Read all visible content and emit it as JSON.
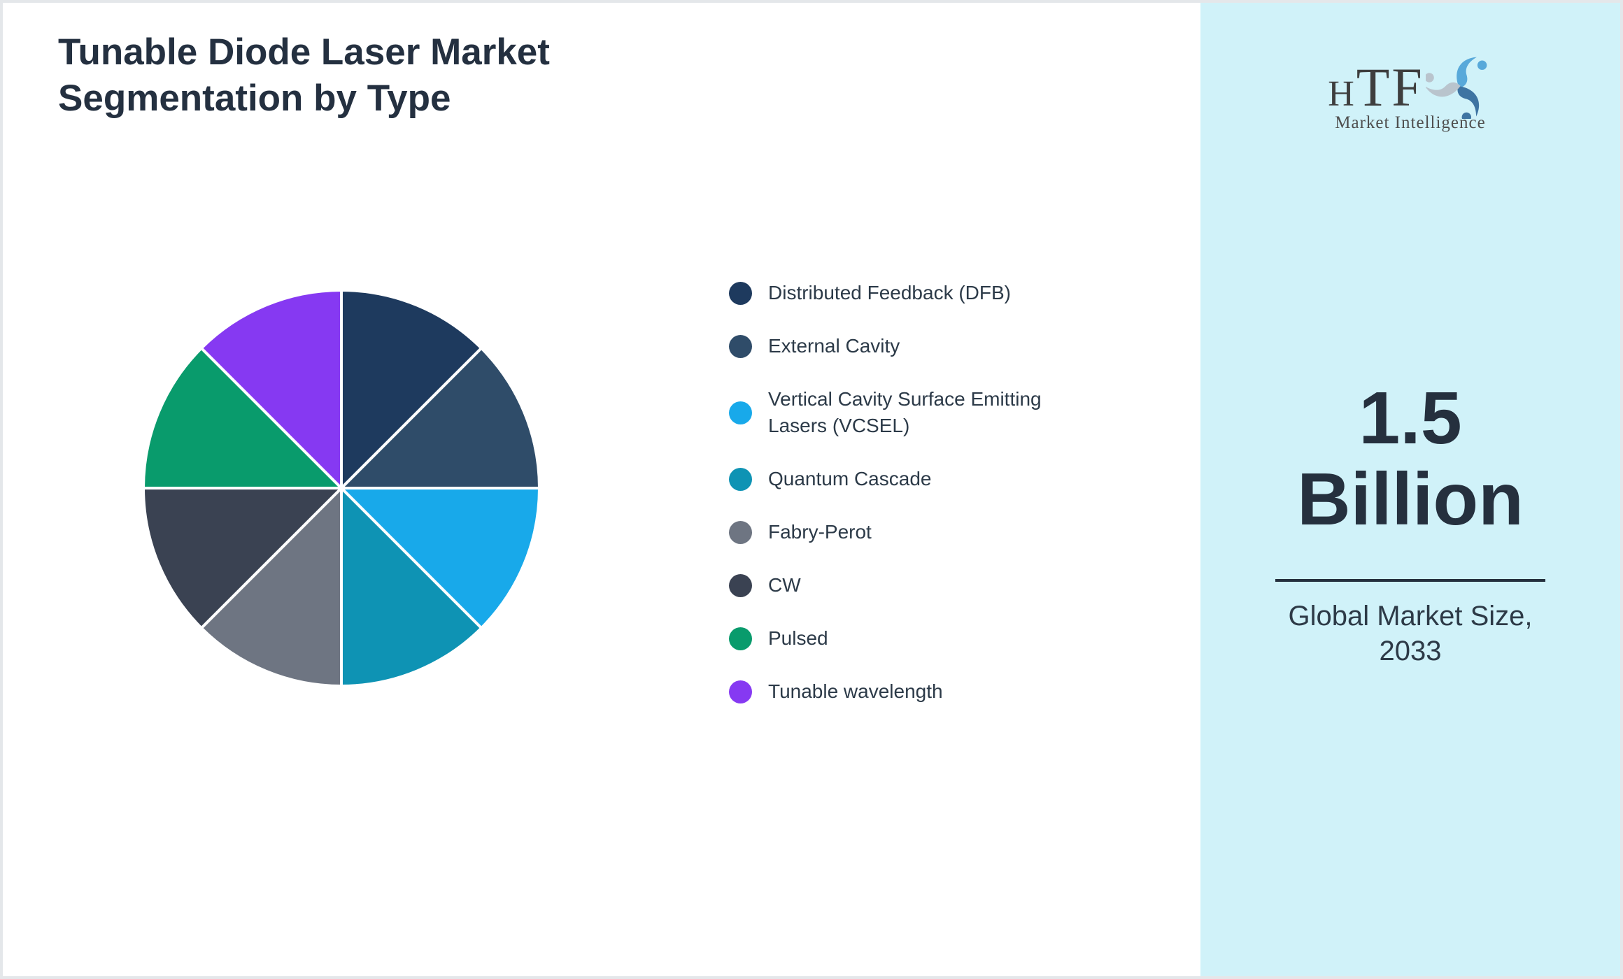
{
  "header": {
    "title_lines": [
      "Tunable Diode Laser Market",
      "Segmentation by Type"
    ]
  },
  "chart_data": {
    "type": "pie",
    "title": "Tunable Diode Laser Market Segmentation by Type",
    "categories": [
      "Distributed Feedback (DFB)",
      "External Cavity",
      "Vertical Cavity Surface Emitting Lasers (VCSEL)",
      "Quantum Cascade",
      "Fabry-Perot",
      "CW",
      "Pulsed",
      "Tunable wavelength"
    ],
    "values": [
      12.5,
      12.5,
      12.5,
      12.5,
      12.5,
      12.5,
      12.5,
      12.5
    ],
    "unit": "percent-estimated",
    "colors": [
      "#1e3a5e",
      "#2f4c69",
      "#18a9ea",
      "#0e93b4",
      "#6e7582",
      "#3a4252",
      "#099b6c",
      "#8639f2"
    ],
    "start_angle_deg": -90,
    "direction": "clockwise",
    "slice_border_color": "#ffffff",
    "legend_position": "right",
    "data_labels": "none"
  },
  "sidebar": {
    "background_color": "#d0f2f9",
    "logo": {
      "brand_h": "H",
      "brand_tf": "TF",
      "tagline": "Market Intelligence"
    },
    "market_size": {
      "value_line1": "1.5",
      "value_line2": "Billion",
      "caption_line1": "Global Market Size,",
      "caption_line2": "2033"
    }
  },
  "theme": {
    "page_border_color": "#e4e7ea",
    "title_color": "#243040",
    "value_text_color": "#25303e"
  }
}
